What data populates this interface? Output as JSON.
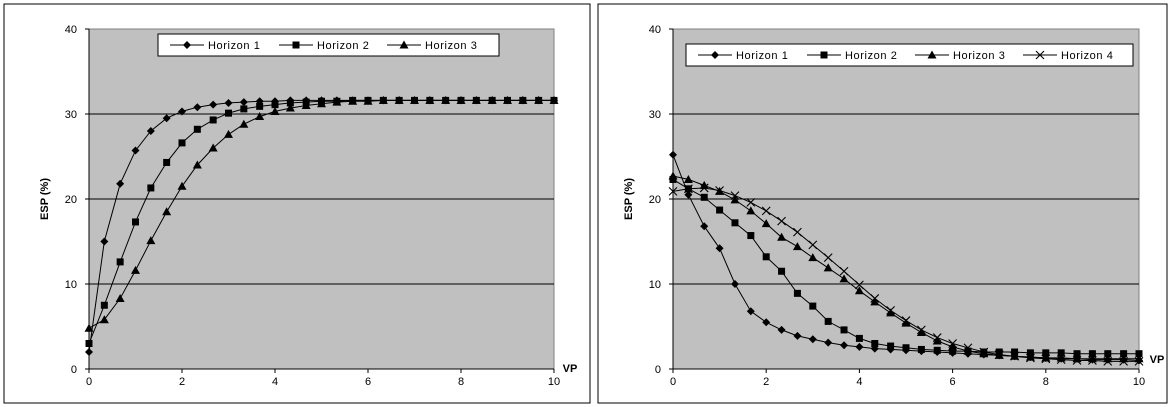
{
  "charts": [
    {
      "id": "left",
      "ylabel": "ESP (%)",
      "xlabel": "VP",
      "xticks": [
        "0",
        "2",
        "4",
        "6",
        "8",
        "10"
      ],
      "yticks": [
        "0",
        "10",
        "20",
        "30",
        "40"
      ]
    },
    {
      "id": "right",
      "ylabel": "ESP (%)",
      "xlabel": "VP",
      "xticks": [
        "0",
        "2",
        "4",
        "6",
        "8",
        "10"
      ],
      "yticks": [
        "0",
        "10",
        "20",
        "30",
        "40"
      ]
    }
  ],
  "chart_data": [
    {
      "type": "line",
      "title": "",
      "xlabel": "VP",
      "ylabel": "ESP (%)",
      "xlim": [
        0,
        10
      ],
      "ylim": [
        0,
        40
      ],
      "grid": "horizontal major gridlines",
      "background": "#c0c0c0",
      "legend": "top-center",
      "series": [
        {
          "name": "Horizon 1",
          "marker": "diamond",
          "x": [
            0,
            0.33,
            0.67,
            1.0,
            1.33,
            1.67,
            2.0,
            2.33,
            2.67,
            3.0,
            3.33,
            3.67,
            4.0,
            4.33,
            4.67,
            5.0,
            5.33,
            5.67,
            6.0,
            6.33,
            6.67,
            7.0,
            7.33,
            7.67,
            8.0,
            8.33,
            8.67,
            9.0,
            9.33,
            9.67,
            10.0
          ],
          "y": [
            2.0,
            15.0,
            21.8,
            25.7,
            28.0,
            29.5,
            30.3,
            30.8,
            31.1,
            31.3,
            31.4,
            31.5,
            31.5,
            31.6,
            31.6,
            31.6,
            31.6,
            31.6,
            31.6,
            31.6,
            31.6,
            31.6,
            31.6,
            31.6,
            31.6,
            31.6,
            31.6,
            31.6,
            31.6,
            31.6,
            31.6
          ]
        },
        {
          "name": "Horizon 2",
          "marker": "square",
          "x": [
            0,
            0.33,
            0.67,
            1.0,
            1.33,
            1.67,
            2.0,
            2.33,
            2.67,
            3.0,
            3.33,
            3.67,
            4.0,
            4.33,
            4.67,
            5.0,
            5.33,
            5.67,
            6.0,
            6.33,
            6.67,
            7.0,
            7.33,
            7.67,
            8.0,
            8.33,
            8.67,
            9.0,
            9.33,
            9.67,
            10.0
          ],
          "y": [
            3.0,
            7.5,
            12.6,
            17.3,
            21.3,
            24.3,
            26.6,
            28.2,
            29.3,
            30.1,
            30.6,
            30.9,
            31.1,
            31.3,
            31.4,
            31.5,
            31.5,
            31.6,
            31.6,
            31.6,
            31.6,
            31.6,
            31.6,
            31.6,
            31.6,
            31.6,
            31.6,
            31.6,
            31.6,
            31.6,
            31.6
          ]
        },
        {
          "name": "Horizon 3",
          "marker": "triangle",
          "x": [
            0,
            0.33,
            0.67,
            1.0,
            1.33,
            1.67,
            2.0,
            2.33,
            2.67,
            3.0,
            3.33,
            3.67,
            4.0,
            4.33,
            4.67,
            5.0,
            5.33,
            5.67,
            6.0,
            6.33,
            6.67,
            7.0,
            7.33,
            7.67,
            8.0,
            8.33,
            8.67,
            9.0,
            9.33,
            9.67,
            10.0
          ],
          "y": [
            4.8,
            5.8,
            8.3,
            11.6,
            15.1,
            18.5,
            21.5,
            24.0,
            26.0,
            27.6,
            28.8,
            29.7,
            30.3,
            30.7,
            31.0,
            31.2,
            31.4,
            31.5,
            31.5,
            31.6,
            31.6,
            31.6,
            31.6,
            31.6,
            31.6,
            31.6,
            31.6,
            31.6,
            31.6,
            31.6,
            31.6
          ]
        }
      ]
    },
    {
      "type": "line",
      "title": "",
      "xlabel": "VP",
      "ylabel": "ESP (%)",
      "xlim": [
        0,
        10
      ],
      "ylim": [
        0,
        40
      ],
      "grid": "horizontal major gridlines",
      "background": "#c0c0c0",
      "legend": "top",
      "series": [
        {
          "name": "Horizon 1",
          "marker": "diamond",
          "x": [
            0,
            0.33,
            0.67,
            1.0,
            1.33,
            1.67,
            2.0,
            2.33,
            2.67,
            3.0,
            3.33,
            3.67,
            4.0,
            4.33,
            4.67,
            5.0,
            5.33,
            5.67,
            6.0,
            6.33,
            6.67,
            7.0,
            7.33,
            7.67,
            8.0,
            8.33,
            8.67,
            9.0,
            9.33,
            9.67,
            10.0
          ],
          "y": [
            25.2,
            20.5,
            16.8,
            14.2,
            10.0,
            6.8,
            5.5,
            4.6,
            3.9,
            3.5,
            3.1,
            2.8,
            2.6,
            2.4,
            2.3,
            2.2,
            2.1,
            2.0,
            1.9,
            1.8,
            1.7,
            1.6,
            1.5,
            1.4,
            1.3,
            1.2,
            1.2,
            1.1,
            1.1,
            1.1,
            1.0
          ]
        },
        {
          "name": "Horizon 2",
          "marker": "square",
          "x": [
            0,
            0.33,
            0.67,
            1.0,
            1.33,
            1.67,
            2.0,
            2.33,
            2.67,
            3.0,
            3.33,
            3.67,
            4.0,
            4.33,
            4.67,
            5.0,
            5.33,
            5.67,
            6.0,
            6.33,
            6.67,
            7.0,
            7.33,
            7.67,
            8.0,
            8.33,
            8.67,
            9.0,
            9.33,
            9.67,
            10.0
          ],
          "y": [
            22.3,
            21.2,
            20.2,
            18.7,
            17.2,
            15.7,
            13.2,
            11.5,
            8.9,
            7.4,
            5.6,
            4.6,
            3.6,
            3.0,
            2.7,
            2.5,
            2.3,
            2.2,
            2.1,
            2.1,
            2.0,
            2.0,
            2.0,
            1.9,
            1.9,
            1.9,
            1.8,
            1.8,
            1.8,
            1.8,
            1.8
          ]
        },
        {
          "name": "Horizon 3",
          "marker": "triangle",
          "x": [
            0,
            0.33,
            0.67,
            1.0,
            1.33,
            1.67,
            2.0,
            2.33,
            2.67,
            3.0,
            3.33,
            3.67,
            4.0,
            4.33,
            4.67,
            5.0,
            5.33,
            5.67,
            6.0,
            6.33,
            6.67,
            7.0,
            7.33,
            7.67,
            8.0,
            8.33,
            8.67,
            9.0,
            9.33,
            9.67,
            10.0
          ],
          "y": [
            22.7,
            22.3,
            21.6,
            20.9,
            19.9,
            18.6,
            17.1,
            15.5,
            14.4,
            13.1,
            11.9,
            10.6,
            9.2,
            7.9,
            6.6,
            5.4,
            4.3,
            3.3,
            2.6,
            2.1,
            1.8,
            1.6,
            1.5,
            1.4,
            1.3,
            1.3,
            1.2,
            1.2,
            1.2,
            1.2,
            1.2
          ]
        },
        {
          "name": "Horizon 4",
          "marker": "x",
          "x": [
            0,
            0.33,
            0.67,
            1.0,
            1.33,
            1.67,
            2.0,
            2.33,
            2.67,
            3.0,
            3.33,
            3.67,
            4.0,
            4.33,
            4.67,
            5.0,
            5.33,
            5.67,
            6.0,
            6.33,
            6.67,
            7.0,
            7.33,
            7.67,
            8.0,
            8.33,
            8.67,
            9.0,
            9.33,
            9.67,
            10.0
          ],
          "y": [
            20.9,
            21.2,
            21.3,
            21.0,
            20.4,
            19.6,
            18.6,
            17.4,
            16.1,
            14.6,
            13.1,
            11.5,
            9.9,
            8.3,
            6.9,
            5.7,
            4.6,
            3.7,
            3.0,
            2.5,
            2.0,
            1.7,
            1.5,
            1.3,
            1.2,
            1.1,
            1.0,
            1.0,
            0.9,
            0.9,
            0.9
          ]
        }
      ]
    }
  ]
}
